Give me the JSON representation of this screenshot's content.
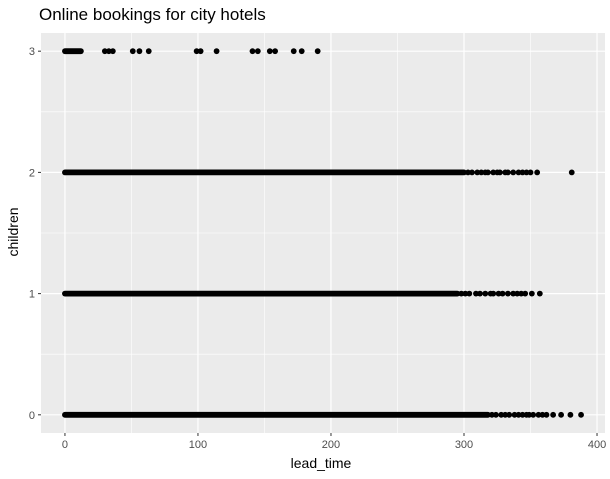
{
  "chart_data": {
    "type": "scatter",
    "title": "Online bookings for city hotels",
    "xlabel": "lead_time",
    "ylabel": "children",
    "xlim": [
      -18,
      406
    ],
    "ylim": [
      -0.15,
      3.15
    ],
    "x_ticks": [
      0,
      100,
      200,
      300,
      400
    ],
    "y_ticks": [
      0,
      1,
      2,
      3
    ],
    "grid": true,
    "legend": "none",
    "colors": {
      "panel": "#ebebeb",
      "grid_major": "#ffffff",
      "point": "#000000"
    },
    "series": [
      {
        "y": 3,
        "dense_range": [
          0,
          12
        ],
        "x_extra": [
          30,
          33,
          36,
          51,
          56,
          63,
          99,
          102,
          114,
          141,
          145,
          154,
          158,
          172,
          178,
          190
        ]
      },
      {
        "y": 2,
        "dense_range": [
          0,
          300
        ],
        "x_extra": [
          303,
          306,
          310,
          313,
          316,
          318,
          322,
          325,
          327,
          331,
          333,
          337,
          341,
          344,
          347,
          350,
          355,
          381
        ]
      },
      {
        "y": 1,
        "dense_range": [
          0,
          295
        ],
        "x_extra": [
          298,
          301,
          304,
          309,
          312,
          316,
          320,
          322,
          326,
          329,
          333,
          337,
          340,
          343,
          346,
          351,
          357
        ]
      },
      {
        "y": 0,
        "dense_range": [
          0,
          318
        ],
        "x_extra": [
          321,
          324,
          328,
          331,
          334,
          338,
          341,
          344,
          347,
          349,
          352,
          356,
          359,
          362,
          367,
          373,
          380,
          388
        ]
      }
    ]
  }
}
